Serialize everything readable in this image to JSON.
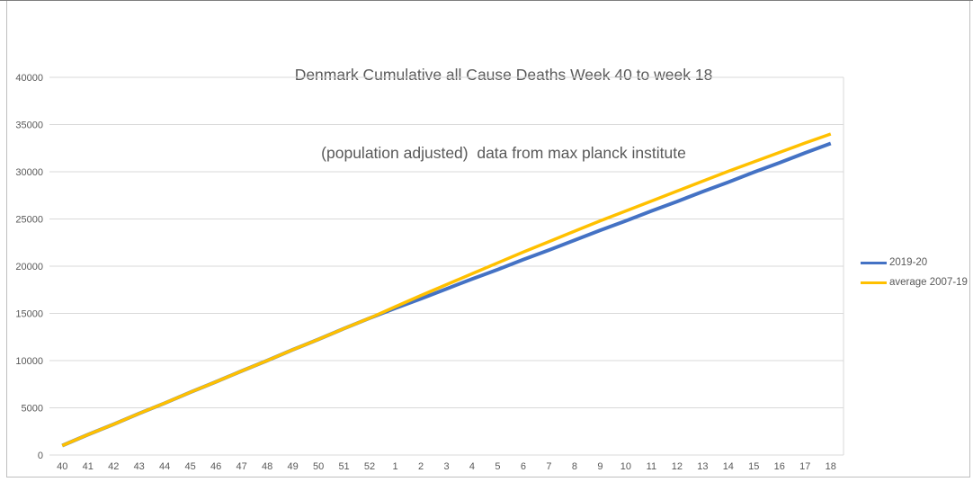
{
  "title": {
    "line1": "Denmark Cumulative all Cause Deaths Week 40 to week 18",
    "line2": "(population adjusted)  data from max planck institute"
  },
  "colors": {
    "series_blue": "#4472C4",
    "series_yellow": "#FFC000",
    "gridline": "#D9D9D9",
    "axis_text": "#595959",
    "title_text": "#595959"
  },
  "chart_data": {
    "type": "line",
    "title": "Denmark Cumulative all Cause Deaths Week 40 to week 18 (population adjusted) data from max planck institute",
    "categories": [
      "40",
      "41",
      "42",
      "43",
      "44",
      "45",
      "46",
      "47",
      "48",
      "49",
      "50",
      "51",
      "52",
      "1",
      "2",
      "3",
      "4",
      "5",
      "6",
      "7",
      "8",
      "9",
      "10",
      "11",
      "12",
      "13",
      "14",
      "15",
      "16",
      "17",
      "18"
    ],
    "series": [
      {
        "name": "2019-20",
        "color": "#4472C4",
        "values": [
          1000,
          2150,
          3250,
          4400,
          5500,
          6650,
          7750,
          8900,
          10000,
          11150,
          12250,
          13400,
          14500,
          15550,
          16550,
          17600,
          18650,
          19650,
          20700,
          21700,
          22750,
          23800,
          24800,
          25850,
          26850,
          27900,
          28900,
          29950,
          30950,
          32000,
          33000
        ]
      },
      {
        "name": "average 2007-19",
        "color": "#FFC000",
        "values": [
          1000,
          2150,
          3250,
          4400,
          5500,
          6650,
          7750,
          8900,
          10000,
          11150,
          12250,
          13400,
          14500,
          15700,
          16900,
          18050,
          19200,
          20350,
          21500,
          22600,
          23700,
          24800,
          25850,
          26900,
          27950,
          29000,
          30050,
          31050,
          32050,
          33050,
          34000
        ]
      }
    ],
    "xlabel": "",
    "ylabel": "",
    "ylim": [
      0,
      40000
    ],
    "ytick_step": 5000,
    "grid": "horizontal",
    "legend_position": "right"
  }
}
